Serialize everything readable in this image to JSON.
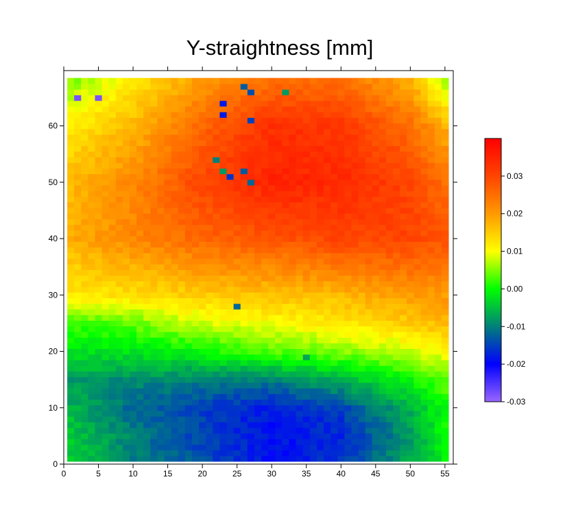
{
  "chart_data": {
    "type": "heatmap",
    "title": "Y-straightness [mm]",
    "xlabel": "",
    "ylabel": "",
    "xlim": [
      0,
      56.2
    ],
    "ylim": [
      0,
      69.8
    ],
    "x_ticks": [
      "0",
      "5",
      "10",
      "15",
      "20",
      "25",
      "30",
      "35",
      "40",
      "45",
      "50",
      "55"
    ],
    "y_ticks": [
      "0",
      "10",
      "20",
      "30",
      "40",
      "50",
      "60"
    ],
    "grid": false,
    "cells_x": [
      1,
      55
    ],
    "cells_y": [
      1,
      68
    ],
    "control_x": [
      1,
      10,
      20,
      30,
      40,
      50,
      55
    ],
    "control_y": [
      1,
      5,
      10,
      15,
      20,
      25,
      30,
      40,
      50,
      60,
      68
    ],
    "control_values": [
      [
        -0.004,
        -0.01,
        -0.014,
        -0.019,
        -0.016,
        -0.007,
        -0.001
      ],
      [
        -0.004,
        -0.01,
        -0.015,
        -0.019,
        -0.017,
        -0.008,
        0.0
      ],
      [
        -0.006,
        -0.012,
        -0.015,
        -0.018,
        -0.015,
        -0.006,
        0.0
      ],
      [
        -0.008,
        -0.009,
        -0.01,
        -0.01,
        -0.006,
        0.0,
        0.004
      ],
      [
        -0.002,
        -0.002,
        0.0,
        0.003,
        0.005,
        0.008,
        0.01
      ],
      [
        0.002,
        0.004,
        0.008,
        0.01,
        0.012,
        0.015,
        0.017
      ],
      [
        0.012,
        0.013,
        0.015,
        0.016,
        0.017,
        0.02,
        0.02
      ],
      [
        0.018,
        0.022,
        0.026,
        0.028,
        0.03,
        0.03,
        0.028
      ],
      [
        0.017,
        0.022,
        0.03,
        0.035,
        0.034,
        0.03,
        0.025
      ],
      [
        0.012,
        0.017,
        0.026,
        0.033,
        0.032,
        0.025,
        0.018
      ],
      [
        0.005,
        0.012,
        0.02,
        0.025,
        0.025,
        0.018,
        0.005
      ]
    ],
    "outliers": [
      {
        "x": 2,
        "y": 65,
        "value": -0.028
      },
      {
        "x": 5,
        "y": 65,
        "value": -0.028
      },
      {
        "x": 26,
        "y": 67,
        "value": -0.013
      },
      {
        "x": 27,
        "y": 66,
        "value": -0.014
      },
      {
        "x": 32,
        "y": 66,
        "value": -0.008
      },
      {
        "x": 23,
        "y": 64,
        "value": -0.018
      },
      {
        "x": 23,
        "y": 62,
        "value": -0.018
      },
      {
        "x": 27,
        "y": 61,
        "value": -0.015
      },
      {
        "x": 22,
        "y": 54,
        "value": -0.01
      },
      {
        "x": 23,
        "y": 52,
        "value": -0.008
      },
      {
        "x": 26,
        "y": 52,
        "value": -0.013
      },
      {
        "x": 24,
        "y": 51,
        "value": -0.016
      },
      {
        "x": 27,
        "y": 50,
        "value": -0.012
      },
      {
        "x": 25,
        "y": 28,
        "value": -0.012
      },
      {
        "x": 35,
        "y": 19,
        "value": -0.007
      }
    ],
    "colorbar": {
      "range": [
        -0.03,
        0.04
      ],
      "ticks": [
        "0.03",
        "0.02",
        "0.01",
        "0.00",
        "-0.01",
        "-0.02",
        "-0.03"
      ],
      "tick_values": [
        0.03,
        0.02,
        0.01,
        0.0,
        -0.01,
        -0.02,
        -0.03
      ],
      "stops": [
        {
          "value": -0.03,
          "color": "#9966ff"
        },
        {
          "value": -0.02,
          "color": "#0000ff"
        },
        {
          "value": -0.01,
          "color": "#00807a"
        },
        {
          "value": 0.0,
          "color": "#00ff00"
        },
        {
          "value": 0.01,
          "color": "#ffff00"
        },
        {
          "value": 0.02,
          "color": "#ff9900"
        },
        {
          "value": 0.03,
          "color": "#ff4400"
        },
        {
          "value": 0.04,
          "color": "#ff0000"
        }
      ]
    }
  }
}
